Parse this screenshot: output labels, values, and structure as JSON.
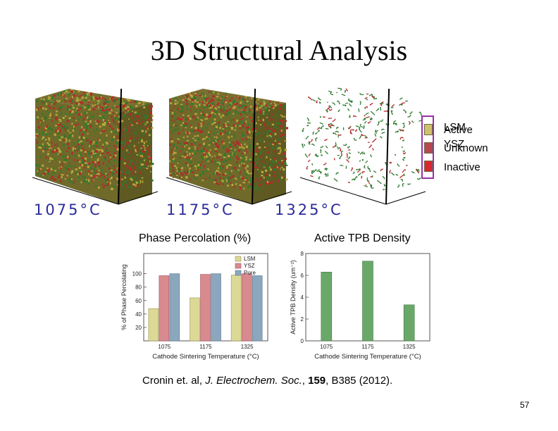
{
  "slide": {
    "title": "3D Structural Analysis",
    "page_number": "57"
  },
  "volumes": [
    {
      "label": "1075°C",
      "render": "dense"
    },
    {
      "label": "1175°C",
      "render": "dense"
    },
    {
      "label": "1325°C",
      "render": "sparse"
    }
  ],
  "volume_legend": {
    "phase_items": [
      "LSM",
      "YSZ"
    ],
    "status_items": [
      "Active",
      "Unknown",
      "Inactive"
    ],
    "swatch_colors": [
      "#cfc06a",
      "#b8474f",
      "#d9282d"
    ],
    "frame_color": "#9b2fa8"
  },
  "colors": {
    "lsm": "#dcd896",
    "ysz": "#d88a8e",
    "pore": "#8aa7bd",
    "tpb": "#6aa86a",
    "temp_label": "#2b2b9a",
    "voxel_green": "#2f7a2f",
    "voxel_red": "#b32a2a",
    "voxel_yellow": "#b8a83a"
  },
  "chart_data": [
    {
      "type": "bar",
      "title": "Phase Percolation (%)",
      "xlabel": "Cathode Sintering Temperature (°C)",
      "ylabel": "% of Phase Percolating",
      "categories": [
        "1075",
        "1175",
        "1325"
      ],
      "ylim": [
        0,
        130
      ],
      "yticks": [
        20,
        40,
        60,
        80,
        100
      ],
      "grid": false,
      "legend_position": "top-right",
      "series": [
        {
          "name": "LSM",
          "values": [
            48,
            64,
            98
          ]
        },
        {
          "name": "YSZ",
          "values": [
            97,
            99,
            100
          ]
        },
        {
          "name": "Pore",
          "values": [
            100,
            100,
            97
          ]
        }
      ]
    },
    {
      "type": "bar",
      "title": "Active TPB Density",
      "xlabel": "Cathode Sintering Temperature (°C)",
      "ylabel": "Active TPB Density (um⁻²)",
      "categories": [
        "1075",
        "1175",
        "1325"
      ],
      "ylim": [
        0,
        8
      ],
      "yticks": [
        0,
        2,
        4,
        6,
        8
      ],
      "grid": false,
      "series": [
        {
          "values": [
            6.3,
            7.3,
            3.3
          ]
        }
      ]
    }
  ],
  "citation": {
    "authors": "Cronin et. al,",
    "journal": "J. Electrochem. Soc.",
    "volume": "159",
    "rest": ", B385 (2012)."
  }
}
